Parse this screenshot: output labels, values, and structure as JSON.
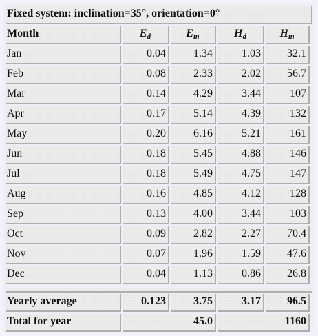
{
  "title": "Fixed system: inclination=35°, orientation=0°",
  "headers": {
    "month": "Month",
    "ed": {
      "sym": "E",
      "sub": "d"
    },
    "em": {
      "sym": "E",
      "sub": "m"
    },
    "hd": {
      "sym": "H",
      "sub": "d"
    },
    "hm": {
      "sym": "H",
      "sub": "m"
    }
  },
  "rows": [
    {
      "month": "Jan",
      "ed": "0.04",
      "em": "1.34",
      "hd": "1.03",
      "hm": "32.1"
    },
    {
      "month": "Feb",
      "ed": "0.08",
      "em": "2.33",
      "hd": "2.02",
      "hm": "56.7"
    },
    {
      "month": "Mar",
      "ed": "0.14",
      "em": "4.29",
      "hd": "3.44",
      "hm": "107"
    },
    {
      "month": "Apr",
      "ed": "0.17",
      "em": "5.14",
      "hd": "4.39",
      "hm": "132"
    },
    {
      "month": "May",
      "ed": "0.20",
      "em": "6.16",
      "hd": "5.21",
      "hm": "161"
    },
    {
      "month": "Jun",
      "ed": "0.18",
      "em": "5.45",
      "hd": "4.88",
      "hm": "146"
    },
    {
      "month": "Jul",
      "ed": "0.18",
      "em": "5.49",
      "hd": "4.75",
      "hm": "147"
    },
    {
      "month": "Aug",
      "ed": "0.16",
      "em": "4.85",
      "hd": "4.12",
      "hm": "128"
    },
    {
      "month": "Sep",
      "ed": "0.13",
      "em": "4.00",
      "hd": "3.44",
      "hm": "103"
    },
    {
      "month": "Oct",
      "ed": "0.09",
      "em": "2.82",
      "hd": "2.27",
      "hm": "70.4"
    },
    {
      "month": "Nov",
      "ed": "0.07",
      "em": "1.96",
      "hd": "1.59",
      "hm": "47.6"
    },
    {
      "month": "Dec",
      "ed": "0.04",
      "em": "1.13",
      "hd": "0.86",
      "hm": "26.8"
    }
  ],
  "yearly": {
    "label": "Yearly average",
    "ed": "0.123",
    "em": "3.75",
    "hd": "3.17",
    "hm": "96.5"
  },
  "total": {
    "label": "Total for year",
    "e": "45.0",
    "h": "1160"
  }
}
